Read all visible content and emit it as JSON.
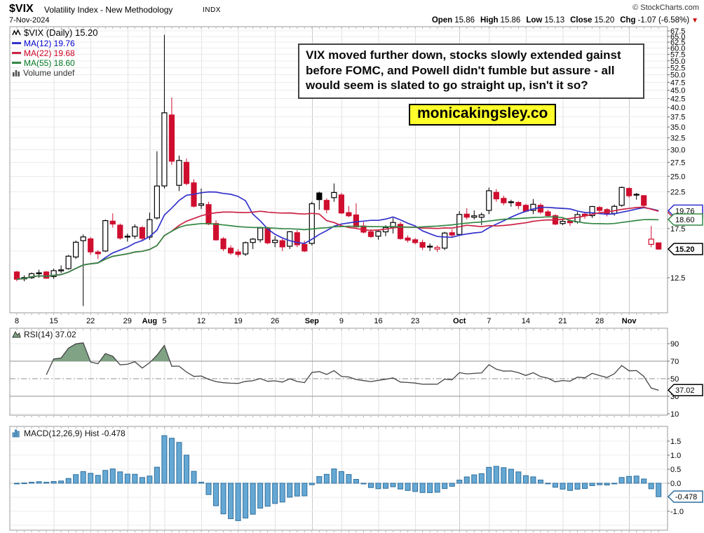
{
  "header": {
    "symbol": "$VIX",
    "description": "Volatility Index - New Methodology",
    "exchange": "INDX",
    "copyright": "© StockCharts.com",
    "date": "7-Nov-2024"
  },
  "quote": {
    "open_label": "Open",
    "open": "15.86",
    "high_label": "High",
    "high": "15.86",
    "low_label": "Low",
    "low": "15.13",
    "close_label": "Close",
    "close": "15.20",
    "chg_label": "Chg",
    "chg": "-1.07 (-6.58%)",
    "chg_arrow": "▼"
  },
  "legend": {
    "price": "$VIX (Daily) 15.20",
    "ma12": "MA(12) 19.76",
    "ma22": "MA(22) 19.68",
    "ma55": "MA(55) 18.60",
    "volume": "Volume undef",
    "rsi": "RSI(14) 37.02",
    "macd": "MACD(12,26,9) Hist -0.478"
  },
  "annotation": {
    "lines": [
      "VIX moved further down, stocks slowly extended gainst",
      "before FOMC, and Powell didn't fumble but assure - all",
      "would seem is slated to go straight up, isn't it so?"
    ]
  },
  "watermark": "monicakingsley.co",
  "colors": {
    "candle_down": "#cf0e2f",
    "candle_up_stroke": "#000000",
    "ma12": "#3333cc",
    "ma22": "#cc2244",
    "ma55": "#338844",
    "rsi_line": "#444444",
    "rsi_fill": "#7fa384",
    "macd_fill": "#66a8d4",
    "macd_stroke": "#2e6f9e",
    "grid_light": "#ececec",
    "grid_week": "#e2e2e2",
    "grid_month": "#c9c9c9",
    "panel_border": "#999999",
    "level_line": "#909090",
    "chg_arrow": "#cc0000",
    "watermark_bg": "#ffff2b"
  },
  "chart_data": [
    {
      "type": "candlestick",
      "title": "$VIX Daily",
      "log_scale": true,
      "y_axis_labels": [
        "67.5",
        "65.0",
        "62.5",
        "60.0",
        "57.5",
        "55.0",
        "52.5",
        "50.0",
        "47.5",
        "45.0",
        "42.5",
        "40.0",
        "37.5",
        "35.0",
        "32.5",
        "30.0",
        "27.5",
        "25.0",
        "22.5",
        "17.5",
        "12.5"
      ],
      "y_grid_step": 2.5,
      "y_range": [
        11.6,
        69.5
      ],
      "columns": [
        "date",
        "open",
        "high",
        "low",
        "close"
      ],
      "candles": [
        [
          "Jul 8",
          13.0,
          13.1,
          12.2,
          12.37
        ],
        [
          "Jul 9",
          12.4,
          12.7,
          12.2,
          12.51
        ],
        [
          "Jul 10",
          12.5,
          12.95,
          12.4,
          12.85
        ],
        [
          "Jul 11",
          12.9,
          13.2,
          12.5,
          12.92
        ],
        [
          "Jul 12",
          13.0,
          13.1,
          12.4,
          12.46
        ],
        [
          "Jul 15",
          12.6,
          13.3,
          12.4,
          13.12
        ],
        [
          "Jul 16",
          13.1,
          13.6,
          12.9,
          13.19
        ],
        [
          "Jul 17",
          13.3,
          14.6,
          13.2,
          14.48
        ],
        [
          "Jul 18",
          14.4,
          16.1,
          14.2,
          15.93
        ],
        [
          "Jul 19",
          16.1,
          16.8,
          10.3,
          16.52
        ],
        [
          "Jul 22",
          16.3,
          16.5,
          14.6,
          14.91
        ],
        [
          "Jul 23",
          14.9,
          15.1,
          14.2,
          14.72
        ],
        [
          "Jul 24",
          15.0,
          18.6,
          14.9,
          18.46
        ],
        [
          "Jul 25",
          18.4,
          19.4,
          17.6,
          18.04
        ],
        [
          "Jul 26",
          17.9,
          18.1,
          16.2,
          16.39
        ],
        [
          "Jul 29",
          16.5,
          16.9,
          16.0,
          16.6
        ],
        [
          "Jul 30",
          16.6,
          18.0,
          16.3,
          17.69
        ],
        [
          "Jul 31",
          17.6,
          17.8,
          16.1,
          16.36
        ],
        [
          "Aug 1",
          16.5,
          19.5,
          16.2,
          18.59
        ],
        [
          "Aug 2",
          18.8,
          29.66,
          18.6,
          23.39
        ],
        [
          "Aug 5",
          23.4,
          65.73,
          23.0,
          38.57
        ],
        [
          "Aug 6",
          38.0,
          42.8,
          27.0,
          27.71
        ],
        [
          "Aug 7",
          23.5,
          28.8,
          22.6,
          27.85
        ],
        [
          "Aug 8",
          27.5,
          28.2,
          23.5,
          23.79
        ],
        [
          "Aug 9",
          23.9,
          24.5,
          20.2,
          20.37
        ],
        [
          "Aug 12",
          20.5,
          23.0,
          20.0,
          20.71
        ],
        [
          "Aug 13",
          20.6,
          21.0,
          17.9,
          18.04
        ],
        [
          "Aug 14",
          18.1,
          18.5,
          16.1,
          16.19
        ],
        [
          "Aug 15",
          16.3,
          16.5,
          15.0,
          15.23
        ],
        [
          "Aug 16",
          15.3,
          15.6,
          14.6,
          14.8
        ],
        [
          "Aug 19",
          14.9,
          15.2,
          14.4,
          14.65
        ],
        [
          "Aug 20",
          14.7,
          16.0,
          14.5,
          15.88
        ],
        [
          "Aug 21",
          15.9,
          16.4,
          15.2,
          16.27
        ],
        [
          "Aug 22",
          16.2,
          17.6,
          15.9,
          17.56
        ],
        [
          "Aug 23",
          17.5,
          17.7,
          15.7,
          15.86
        ],
        [
          "Aug 26",
          15.9,
          16.6,
          15.4,
          16.15
        ],
        [
          "Aug 27",
          16.1,
          16.3,
          15.0,
          15.43
        ],
        [
          "Aug 28",
          15.5,
          17.2,
          15.2,
          17.11
        ],
        [
          "Aug 29",
          17.0,
          17.3,
          15.4,
          15.65
        ],
        [
          "Aug 30",
          15.7,
          16.1,
          14.9,
          15.0
        ],
        [
          "Sep 3",
          15.8,
          21.0,
          15.6,
          20.72
        ],
        [
          "Sep 4",
          22.3,
          22.5,
          19.9,
          21.31
        ],
        [
          "Sep 5",
          21.2,
          21.5,
          19.4,
          19.9
        ],
        [
          "Sep 6",
          21.6,
          23.8,
          21.0,
          22.38
        ],
        [
          "Sep 9",
          22.0,
          22.3,
          19.3,
          19.45
        ],
        [
          "Sep 10",
          19.5,
          20.4,
          18.9,
          19.08
        ],
        [
          "Sep 11",
          19.2,
          20.8,
          17.6,
          17.69
        ],
        [
          "Sep 12",
          17.8,
          18.3,
          16.9,
          17.07
        ],
        [
          "Sep 13",
          17.1,
          17.4,
          16.4,
          16.56
        ],
        [
          "Sep 16",
          16.6,
          17.3,
          16.2,
          17.14
        ],
        [
          "Sep 17",
          17.1,
          17.9,
          16.6,
          17.61
        ],
        [
          "Sep 18",
          17.6,
          18.8,
          16.9,
          18.23
        ],
        [
          "Sep 19",
          18.0,
          18.3,
          16.2,
          16.33
        ],
        [
          "Sep 20",
          16.4,
          16.7,
          15.9,
          16.15
        ],
        [
          "Sep 23",
          16.2,
          16.4,
          15.7,
          15.89
        ],
        [
          "Sep 24",
          15.9,
          16.2,
          15.1,
          15.39
        ],
        [
          "Sep 25",
          15.5,
          15.8,
          15.0,
          15.41
        ],
        [
          "Sep 26",
          15.2,
          15.6,
          14.9,
          15.37
        ],
        [
          "Sep 27",
          15.3,
          17.1,
          15.1,
          16.96
        ],
        [
          "Sep 30",
          17.0,
          17.4,
          16.4,
          16.73
        ],
        [
          "Oct 1",
          16.8,
          19.7,
          16.7,
          19.26
        ],
        [
          "Oct 2",
          19.3,
          20.1,
          18.6,
          18.9
        ],
        [
          "Oct 3",
          18.9,
          19.8,
          18.6,
          19.08
        ],
        [
          "Oct 4",
          18.9,
          19.5,
          17.9,
          19.21
        ],
        [
          "Oct 7",
          19.8,
          23.14,
          19.3,
          22.64
        ],
        [
          "Oct 8",
          22.4,
          22.9,
          21.0,
          21.42
        ],
        [
          "Oct 9",
          21.5,
          21.9,
          20.5,
          20.86
        ],
        [
          "Oct 10",
          21.0,
          21.3,
          20.3,
          20.93
        ],
        [
          "Oct 11",
          20.9,
          21.1,
          20.0,
          20.46
        ],
        [
          "Oct 14",
          20.5,
          20.7,
          19.6,
          19.7
        ],
        [
          "Oct 15",
          19.8,
          21.4,
          19.3,
          20.64
        ],
        [
          "Oct 16",
          20.5,
          20.8,
          19.3,
          19.58
        ],
        [
          "Oct 17",
          19.6,
          19.9,
          18.9,
          19.11
        ],
        [
          "Oct 18",
          19.1,
          19.3,
          17.9,
          18.03
        ],
        [
          "Oct 21",
          18.1,
          18.7,
          17.9,
          18.37
        ],
        [
          "Oct 22",
          18.4,
          18.6,
          17.8,
          18.2
        ],
        [
          "Oct 23",
          18.3,
          19.6,
          18.1,
          19.24
        ],
        [
          "Oct 24",
          19.3,
          19.5,
          18.7,
          19.08
        ],
        [
          "Oct 25",
          19.1,
          20.4,
          18.8,
          20.33
        ],
        [
          "Oct 28",
          20.2,
          20.4,
          19.5,
          19.8
        ],
        [
          "Oct 29",
          19.9,
          20.1,
          19.0,
          19.34
        ],
        [
          "Oct 30",
          19.4,
          20.6,
          19.1,
          20.35
        ],
        [
          "Oct 31",
          20.5,
          23.3,
          20.3,
          23.16
        ],
        [
          "Nov 1",
          23.0,
          23.2,
          21.6,
          21.88
        ],
        [
          "Nov 4",
          22.1,
          22.3,
          21.3,
          21.98
        ],
        [
          "Nov 5",
          21.9,
          22.0,
          20.3,
          20.49
        ],
        [
          "Nov 6",
          15.7,
          17.8,
          15.4,
          16.27
        ],
        [
          "Nov 7",
          15.86,
          15.86,
          15.13,
          15.2
        ]
      ],
      "x_ticks": [
        {
          "i": 0,
          "label": "8"
        },
        {
          "i": 5,
          "label": "15"
        },
        {
          "i": 10,
          "label": "22"
        },
        {
          "i": 15,
          "label": "29"
        },
        {
          "i": 18,
          "label": "Aug",
          "bold": true,
          "month": true
        },
        {
          "i": 20,
          "label": "5"
        },
        {
          "i": 25,
          "label": "12"
        },
        {
          "i": 30,
          "label": "19"
        },
        {
          "i": 35,
          "label": "26"
        },
        {
          "i": 40,
          "label": "Sep",
          "bold": true,
          "month": true
        },
        {
          "i": 44,
          "label": "9"
        },
        {
          "i": 49,
          "label": "16"
        },
        {
          "i": 54,
          "label": "23"
        },
        {
          "i": 60,
          "label": "Oct",
          "bold": true,
          "month": true
        },
        {
          "i": 64,
          "label": "7"
        },
        {
          "i": 69,
          "label": "14"
        },
        {
          "i": 74,
          "label": "21"
        },
        {
          "i": 79,
          "label": "28"
        },
        {
          "i": 83,
          "label": "Nov",
          "bold": true,
          "month": true
        }
      ],
      "overlays": [
        {
          "name": "MA(12)",
          "window": 12,
          "color_key": "ma12",
          "last": 19.76
        },
        {
          "name": "MA(22)",
          "window": 22,
          "color_key": "ma22",
          "last": 19.68
        },
        {
          "name": "MA(55)",
          "window": 55,
          "color_key": "ma55",
          "last": 18.6
        }
      ],
      "price_tags": [
        {
          "label": "19.68",
          "value": 19.68,
          "color_key": "ma22",
          "hidden_behind": "19.76"
        },
        {
          "label": "19.76",
          "value": 19.76,
          "color_key": "ma12"
        },
        {
          "label": "18.60",
          "value": 18.6,
          "color_key": "ma55"
        },
        {
          "label": "15.20",
          "value": 15.2,
          "color_key": "candle_up_stroke",
          "bold": true
        }
      ]
    },
    {
      "type": "line",
      "title": "RSI(14)",
      "derived_from": "close",
      "period": 14,
      "last": 37.02,
      "levels": {
        "overbought": 70,
        "mid": 50,
        "oversold": 30
      },
      "y_axis_labels": [
        "90",
        "70",
        "50",
        "30",
        "10"
      ],
      "y_range": [
        10,
        90
      ],
      "tag": {
        "label": "37.02",
        "value": 37.02,
        "color": "#000000"
      }
    },
    {
      "type": "bar",
      "title": "MACD(12,26,9) Histogram",
      "derived_from": "close",
      "params": [
        12,
        26,
        9
      ],
      "last": -0.478,
      "y_axis_labels": [
        "1.5",
        "1.0",
        "0.5",
        "0.0",
        "-1.0"
      ],
      "y_axis_values": [
        1.5,
        1.0,
        0.5,
        0.0,
        -1.0
      ],
      "y_range": [
        -1.7,
        2.0
      ],
      "tag": {
        "label": "-0.478",
        "value": -0.478,
        "color_key": "macd_stroke"
      }
    }
  ]
}
